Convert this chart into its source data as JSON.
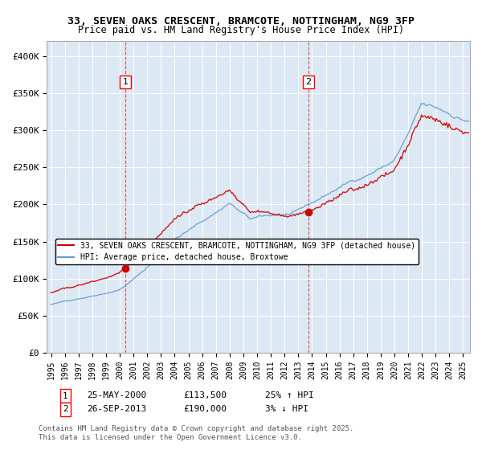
{
  "title_line1": "33, SEVEN OAKS CRESCENT, BRAMCOTE, NOTTINGHAM, NG9 3FP",
  "title_line2": "Price paid vs. HM Land Registry's House Price Index (HPI)",
  "ylabel_ticks": [
    "£0",
    "£50K",
    "£100K",
    "£150K",
    "£200K",
    "£250K",
    "£300K",
    "£350K",
    "£400K"
  ],
  "ytick_values": [
    0,
    50000,
    100000,
    150000,
    200000,
    250000,
    300000,
    350000,
    400000
  ],
  "ylim": [
    0,
    420000
  ],
  "xlim_start": 1995.0,
  "xlim_end": 2025.5,
  "bg_color": "#dce9f5",
  "plot_bg_color": "#dce9f5",
  "red_line_color": "#cc0000",
  "blue_line_color": "#6699cc",
  "marker1_date": 2000.4,
  "marker1_value": 113500,
  "marker2_date": 2013.73,
  "marker2_value": 190000,
  "sale1_label": "1",
  "sale2_label": "2",
  "legend_line1": "33, SEVEN OAKS CRESCENT, BRAMCOTE, NOTTINGHAM, NG9 3FP (detached house)",
  "legend_line2": "HPI: Average price, detached house, Broxtowe",
  "annotation1": "1     25-MAY-2000          £113,500          25% ↑ HPI",
  "annotation2": "2     26-SEP-2013          £190,000            3% ↓ HPI",
  "footer": "Contains HM Land Registry data © Crown copyright and database right 2025.\nThis data is licensed under the Open Government Licence v3.0.",
  "title_fontsize": 10,
  "axis_fontsize": 8
}
